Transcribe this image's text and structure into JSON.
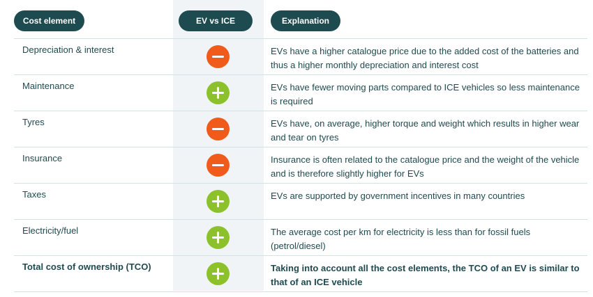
{
  "header": {
    "cost_element": "Cost element",
    "ev_vs_ice": "EV vs ICE",
    "explanation": "Explanation"
  },
  "rows": [
    {
      "name": "Depreciation & interest",
      "sign": "minus",
      "explanation": "EVs have a higher catalogue price due to the added cost of the batteries and thus a higher monthly depreciation and interest cost"
    },
    {
      "name": "Maintenance",
      "sign": "plus",
      "explanation": "EVs have fewer moving parts compared to ICE vehicles so less maintenance is required"
    },
    {
      "name": "Tyres",
      "sign": "minus",
      "explanation": "EVs have, on average, higher torque and weight which results in higher wear and tear on tyres"
    },
    {
      "name": "Insurance",
      "sign": "minus",
      "explanation": "Insurance is often related to the catalogue price and the weight of the vehicle and is therefore slightly higher for EVs"
    },
    {
      "name": "Taxes",
      "sign": "plus",
      "explanation": "EVs are supported by government incentives in many countries"
    },
    {
      "name": "Electricity/fuel",
      "sign": "plus",
      "explanation": "The average cost per km for electricity is less than for fossil fuels (petrol/diesel)"
    },
    {
      "name": "Total cost of ownership (TCO)",
      "sign": "plus",
      "explanation": "Taking into account all the cost elements, the TCO of an EV is similar to that of an ICE vehicle"
    }
  ],
  "colors": {
    "pill_bg": "#1d4b50",
    "minus": "#f05a1a",
    "plus": "#8cc12b",
    "text": "#1f4a4f",
    "mid_column_bg": "#f1f4f6"
  },
  "icons": {
    "minus": "minus-circle-icon",
    "plus": "plus-circle-icon"
  }
}
